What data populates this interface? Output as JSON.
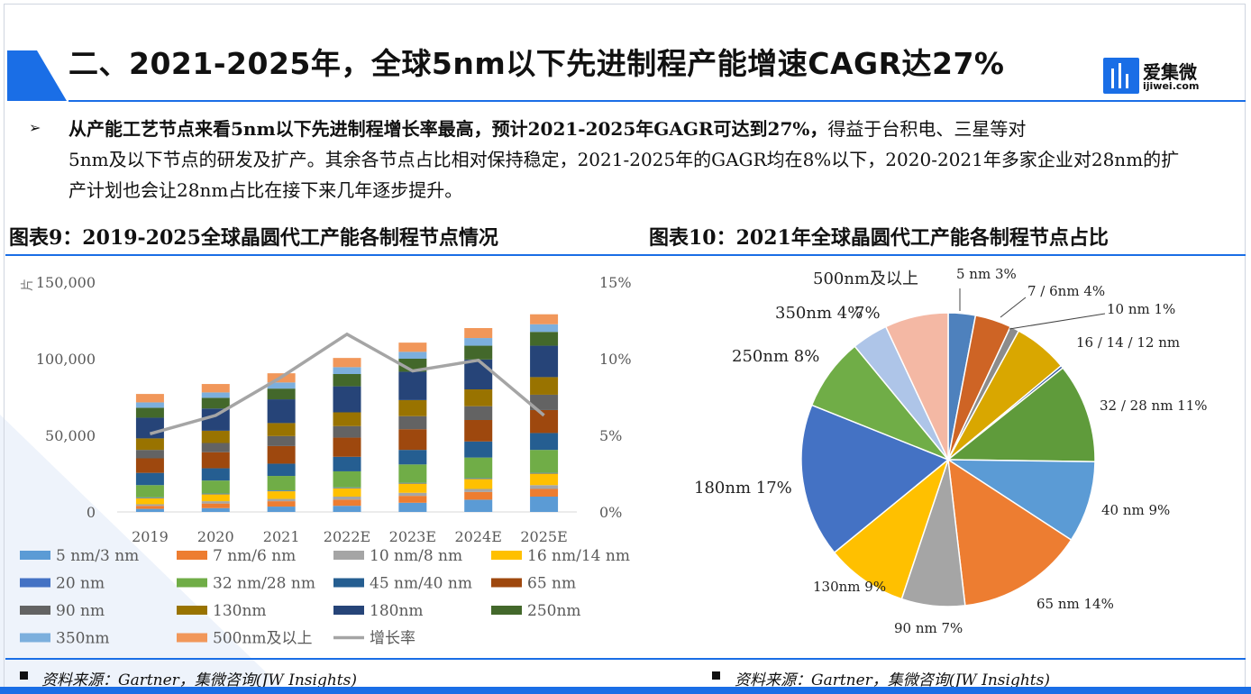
{
  "slide_title": "二、2021-2025年，全球5nm以下先进制程产能增速CAGR达27%",
  "logo": {
    "cn": "爱集微",
    "en": "ijiwei.com"
  },
  "paragraph": {
    "bold": "从产能工艺节点来看5nm以下先进制程增长率最高，预计2021-2025年GAGR可达到27%，",
    "rest_line1": "得益于台积电、三星等对",
    "rest": "5nm及以下节点的研发及扩产。其余各节点占比相对保持稳定，2021-2025年的GAGR均在8%以下，2020-2021年多家企业对28nm的扩产计划也会让28nm占比在接下来几年逐步提升。"
  },
  "left_chart_title": "图表9：2019-2025全球晶圆代工产能各制程节点情况",
  "right_chart_title": "图表10：2021年全球晶圆代工产能各制程节点占比",
  "source_left": "资料来源：Gartner，集微咨询(JW Insights)",
  "source_right": "资料来源：Gartner，集微咨询(JW Insights)",
  "colors": {
    "accent": "#1a6ee6"
  },
  "chart_data": [
    {
      "type": "bar",
      "subtype": "stacked-with-line",
      "categories": [
        "2019",
        "2020",
        "2021",
        "2022E",
        "2023E",
        "2024E",
        "2025E"
      ],
      "y_unit": "片",
      "ylim": [
        0,
        150000
      ],
      "yticks": [
        "0",
        "50,000",
        "100,000",
        "150,000"
      ],
      "y2lim": [
        0,
        15
      ],
      "y2ticks": [
        "0%",
        "5%",
        "10%",
        "15%"
      ],
      "legend_position": "bottom",
      "series": [
        {
          "name": "5 nm/3 nm",
          "color": "#5b9bd5",
          "values": [
            2000,
            2500,
            3500,
            4000,
            6000,
            8000,
            10000
          ]
        },
        {
          "name": "7 nm/6 nm",
          "color": "#ed7d31",
          "values": [
            2000,
            3000,
            3500,
            4000,
            4500,
            5000,
            5000
          ]
        },
        {
          "name": "10 nm/8 nm",
          "color": "#a5a5a5",
          "values": [
            1000,
            1500,
            1500,
            2000,
            2000,
            2000,
            2500
          ]
        },
        {
          "name": "16 nm/14 nm",
          "color": "#ffc000",
          "values": [
            4000,
            4500,
            5000,
            5500,
            6000,
            6500,
            7500
          ]
        },
        {
          "name": "20 nm",
          "color": "#4472c4",
          "values": [
            500,
            500,
            500,
            500,
            500,
            500,
            500
          ]
        },
        {
          "name": "32 nm/28 nm",
          "color": "#70ad47",
          "values": [
            8000,
            8500,
            9500,
            10500,
            12000,
            13500,
            15000
          ]
        },
        {
          "name": "45 nm/40 nm",
          "color": "#255e91",
          "values": [
            8000,
            8000,
            8000,
            9500,
            9500,
            10500,
            11000
          ]
        },
        {
          "name": "65 nm",
          "color": "#9e480e",
          "values": [
            9500,
            10500,
            11500,
            12500,
            13500,
            14000,
            15000
          ]
        },
        {
          "name": "90 nm",
          "color": "#636363",
          "values": [
            5500,
            6000,
            6500,
            7500,
            8500,
            9000,
            10000
          ]
        },
        {
          "name": "130nm",
          "color": "#997300",
          "values": [
            7500,
            8000,
            8500,
            9000,
            10500,
            11000,
            11500
          ]
        },
        {
          "name": "180nm",
          "color": "#264478",
          "values": [
            13500,
            14500,
            15500,
            17000,
            18500,
            19500,
            20500
          ]
        },
        {
          "name": "250nm",
          "color": "#43682b",
          "values": [
            6500,
            7000,
            7000,
            8000,
            8500,
            9000,
            9000
          ]
        },
        {
          "name": "350nm",
          "color": "#7cafdd",
          "values": [
            3500,
            3500,
            4000,
            4500,
            4500,
            5000,
            5000
          ]
        },
        {
          "name": "500nm及以上",
          "color": "#f1975a",
          "values": [
            5500,
            5500,
            6000,
            6000,
            6000,
            6500,
            6500
          ]
        }
      ],
      "line_series": {
        "name": "增长率",
        "color": "#a5a5a5",
        "axis": "secondary",
        "values": [
          5.1,
          6.3,
          8.8,
          11.6,
          9.2,
          9.9,
          6.3
        ]
      }
    },
    {
      "type": "pie",
      "slices": [
        {
          "label": "5 nm  3%",
          "value": 3,
          "color": "#4e81bd"
        },
        {
          "label": "7 / 6nm 4%",
          "value": 4,
          "color": "#ce6425"
        },
        {
          "label": "10 nm 1%",
          "value": 1,
          "color": "#8c8c8c"
        },
        {
          "label": "16 / 14 / 12 nm",
          "value": 6,
          "color": "#d9a700"
        },
        {
          "label": "",
          "value": 0.3,
          "color": "#2f5597"
        },
        {
          "label": "32 / 28 nm 11%",
          "value": 11,
          "color": "#5f9b3b"
        },
        {
          "label": "40 nm 9%",
          "value": 9,
          "color": "#5b9bd5"
        },
        {
          "label": "65 nm 14%",
          "value": 14,
          "color": "#ed7d31"
        },
        {
          "label": "90 nm 7%",
          "value": 7,
          "color": "#a5a5a5"
        },
        {
          "label": "130nm 9%",
          "value": 9,
          "color": "#ffc000"
        },
        {
          "label": "180nm 17%",
          "value": 17,
          "color": "#4472c4"
        },
        {
          "label": "250nm 8%",
          "value": 8,
          "color": "#70ad47"
        },
        {
          "label": "350nm 4%",
          "value": 4,
          "color": "#aec5e8"
        },
        {
          "label": "500nm及以上 7%",
          "value": 7,
          "color": "#f4b8a4"
        }
      ],
      "overlap_labels": [
        "350nm 4%",
        "7%",
        "500nm及以上"
      ]
    }
  ]
}
